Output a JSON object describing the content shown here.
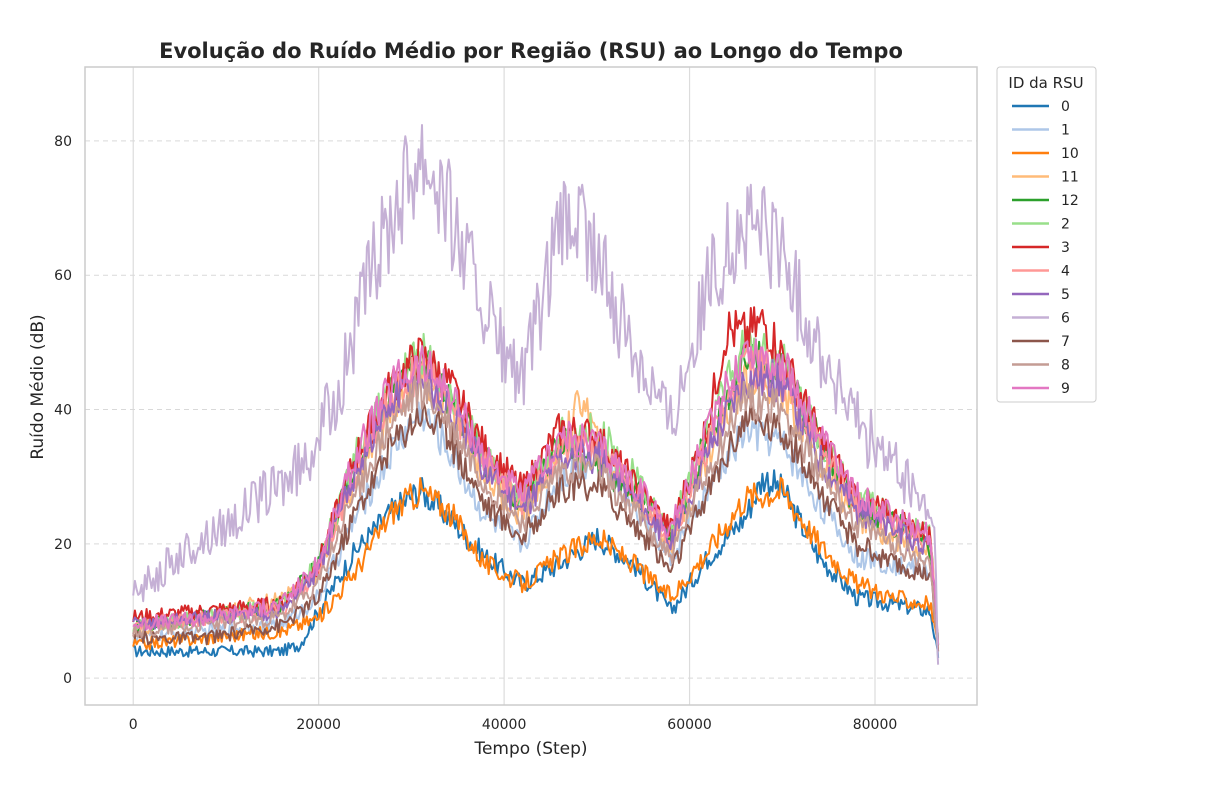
{
  "chart_data": {
    "type": "line",
    "title": "Evolução do Ruído Médio por Região (RSU) ao Longo do Tempo",
    "xlabel": "Tempo (Step)",
    "ylabel": "Ruído Médio (dB)",
    "xlim": [
      -5200,
      91000
    ],
    "ylim": [
      -4,
      91
    ],
    "xticks": [
      0,
      20000,
      40000,
      60000,
      80000
    ],
    "xtick_labels": [
      "0",
      "20000",
      "40000",
      "60000",
      "80000"
    ],
    "yticks": [
      0,
      20,
      40,
      60,
      80
    ],
    "ytick_labels": [
      "0",
      "20",
      "40",
      "60",
      "80"
    ],
    "grid": true,
    "legend": {
      "title": "ID da RSU",
      "placement": "outside-right-top"
    },
    "series": [
      {
        "name": "0",
        "color": "#1f77b4",
        "x": [
          0,
          8000,
          16000,
          18000,
          20000,
          24000,
          28000,
          31000,
          34000,
          38000,
          42000,
          46000,
          50000,
          54000,
          58000,
          62000,
          66000,
          68000,
          70000,
          74000,
          78000,
          82000,
          86000,
          86800
        ],
        "y": [
          4,
          4,
          4,
          5,
          10,
          19,
          25,
          28,
          24,
          18,
          14,
          17,
          21,
          17,
          10,
          18,
          24,
          30,
          28,
          18,
          12,
          11,
          10,
          3
        ]
      },
      {
        "name": "1",
        "color": "#aec7e8",
        "x": [
          0,
          8000,
          16000,
          20000,
          24000,
          28000,
          31000,
          34000,
          38000,
          42000,
          46000,
          50000,
          54000,
          58000,
          62000,
          66000,
          70000,
          74000,
          78000,
          82000,
          86000,
          86800
        ],
        "y": [
          6,
          7,
          8,
          12,
          24,
          34,
          40,
          34,
          24,
          20,
          30,
          33,
          26,
          18,
          28,
          37,
          35,
          26,
          18,
          17,
          16,
          4
        ]
      },
      {
        "name": "10",
        "color": "#ff7f0e",
        "x": [
          0,
          8000,
          16000,
          20000,
          24000,
          28000,
          31000,
          34000,
          38000,
          42000,
          46000,
          50000,
          54000,
          58000,
          62000,
          66000,
          70000,
          74000,
          78000,
          82000,
          86000,
          86800
        ],
        "y": [
          5,
          6,
          7,
          9,
          16,
          25,
          28,
          25,
          17,
          14,
          18,
          21,
          17,
          12,
          19,
          27,
          28,
          20,
          14,
          12,
          11,
          4
        ]
      },
      {
        "name": "11",
        "color": "#ffbb78",
        "x": [
          0,
          8000,
          16000,
          20000,
          24000,
          28000,
          31000,
          34000,
          38000,
          42000,
          46000,
          48500,
          50000,
          54000,
          58000,
          62000,
          66000,
          70000,
          74000,
          78000,
          82000,
          86000,
          86800
        ],
        "y": [
          7,
          9,
          12,
          16,
          30,
          40,
          45,
          40,
          30,
          24,
          34,
          42,
          35,
          27,
          20,
          33,
          45,
          43,
          32,
          24,
          21,
          19,
          5
        ]
      },
      {
        "name": "12",
        "color": "#2ca02c",
        "x": [
          0,
          8000,
          16000,
          20000,
          24000,
          28000,
          31000,
          34000,
          38000,
          42000,
          46000,
          50000,
          54000,
          58000,
          62000,
          66000,
          70000,
          74000,
          78000,
          82000,
          86000,
          86800
        ],
        "y": [
          8,
          9,
          11,
          17,
          32,
          43,
          48,
          42,
          32,
          26,
          35,
          32,
          28,
          21,
          36,
          48,
          46,
          35,
          26,
          23,
          20,
          5
        ]
      },
      {
        "name": "2",
        "color": "#98df8a",
        "x": [
          0,
          8000,
          16000,
          20000,
          24000,
          28000,
          31000,
          34000,
          38000,
          42000,
          46000,
          50000,
          54000,
          58000,
          62000,
          66000,
          70000,
          74000,
          78000,
          82000,
          86000,
          86800
        ],
        "y": [
          8,
          9,
          11,
          17,
          33,
          44,
          49,
          43,
          33,
          27,
          36,
          37,
          30,
          22,
          37,
          50,
          47,
          36,
          27,
          24,
          21,
          5
        ]
      },
      {
        "name": "3",
        "color": "#d62728",
        "x": [
          0,
          8000,
          16000,
          20000,
          24000,
          28000,
          31000,
          34000,
          38000,
          42000,
          46000,
          50000,
          54000,
          58000,
          62000,
          64000,
          66000,
          68000,
          70000,
          74000,
          78000,
          82000,
          86000,
          86800
        ],
        "y": [
          9,
          10,
          11,
          17,
          33,
          44,
          48,
          44,
          34,
          28,
          37,
          36,
          29,
          22,
          38,
          52,
          51,
          53,
          48,
          36,
          27,
          24,
          21,
          5
        ]
      },
      {
        "name": "4",
        "color": "#ff9896",
        "x": [
          0,
          8000,
          16000,
          20000,
          24000,
          28000,
          31000,
          34000,
          38000,
          42000,
          46000,
          50000,
          54000,
          58000,
          62000,
          66000,
          70000,
          74000,
          78000,
          82000,
          86000,
          86800
        ],
        "y": [
          8,
          9,
          10,
          16,
          31,
          42,
          46,
          41,
          32,
          26,
          34,
          34,
          28,
          21,
          35,
          47,
          45,
          34,
          26,
          23,
          20,
          5
        ]
      },
      {
        "name": "5",
        "color": "#9467bd",
        "x": [
          0,
          8000,
          16000,
          20000,
          24000,
          28000,
          31000,
          34000,
          38000,
          42000,
          46000,
          50000,
          54000,
          58000,
          62000,
          66000,
          70000,
          74000,
          78000,
          82000,
          86000,
          86800
        ],
        "y": [
          8,
          9,
          10,
          16,
          31,
          41,
          45,
          40,
          31,
          25,
          33,
          33,
          27,
          20,
          34,
          45,
          44,
          33,
          25,
          22,
          19,
          5
        ]
      },
      {
        "name": "6",
        "color": "#c5b0d5",
        "x": [
          0,
          2000,
          6000,
          10000,
          14000,
          18000,
          22000,
          25000,
          28000,
          31000,
          33000,
          36000,
          40000,
          42000,
          44000,
          46000,
          48000,
          50000,
          53000,
          56000,
          58000,
          60000,
          63000,
          66000,
          68000,
          70000,
          72000,
          75000,
          78000,
          81000,
          84000,
          86000,
          86500,
          86800
        ],
        "y": [
          12,
          15,
          19,
          23,
          27,
          31,
          42,
          57,
          70,
          79,
          74,
          62,
          48,
          44,
          55,
          66,
          68,
          62,
          52,
          44,
          38,
          49,
          62,
          67,
          67,
          63,
          55,
          46,
          38,
          33,
          28,
          24,
          20,
          2
        ]
      },
      {
        "name": "7",
        "color": "#8c564b",
        "x": [
          0,
          8000,
          16000,
          20000,
          24000,
          28000,
          31000,
          34000,
          38000,
          42000,
          46000,
          50000,
          54000,
          58000,
          62000,
          66000,
          70000,
          74000,
          78000,
          82000,
          86000,
          86800
        ],
        "y": [
          6,
          6,
          8,
          12,
          25,
          35,
          40,
          36,
          26,
          21,
          28,
          29,
          23,
          16,
          28,
          39,
          37,
          28,
          20,
          17,
          15,
          4
        ]
      },
      {
        "name": "8",
        "color": "#c49c94",
        "x": [
          0,
          8000,
          16000,
          20000,
          24000,
          28000,
          31000,
          34000,
          38000,
          42000,
          46000,
          50000,
          54000,
          58000,
          62000,
          66000,
          70000,
          74000,
          78000,
          82000,
          86000,
          86800
        ],
        "y": [
          7,
          8,
          9,
          14,
          28,
          38,
          43,
          38,
          29,
          23,
          31,
          31,
          25,
          18,
          31,
          42,
          40,
          31,
          23,
          20,
          17,
          4
        ]
      },
      {
        "name": "9",
        "color": "#e377c2",
        "x": [
          0,
          8000,
          16000,
          20000,
          24000,
          28000,
          31000,
          34000,
          38000,
          42000,
          46000,
          50000,
          54000,
          58000,
          62000,
          66000,
          70000,
          74000,
          78000,
          82000,
          86000,
          86800
        ],
        "y": [
          8,
          9,
          11,
          17,
          33,
          44,
          47,
          43,
          33,
          27,
          36,
          35,
          29,
          22,
          37,
          49,
          47,
          36,
          27,
          24,
          21,
          5
        ]
      }
    ]
  }
}
